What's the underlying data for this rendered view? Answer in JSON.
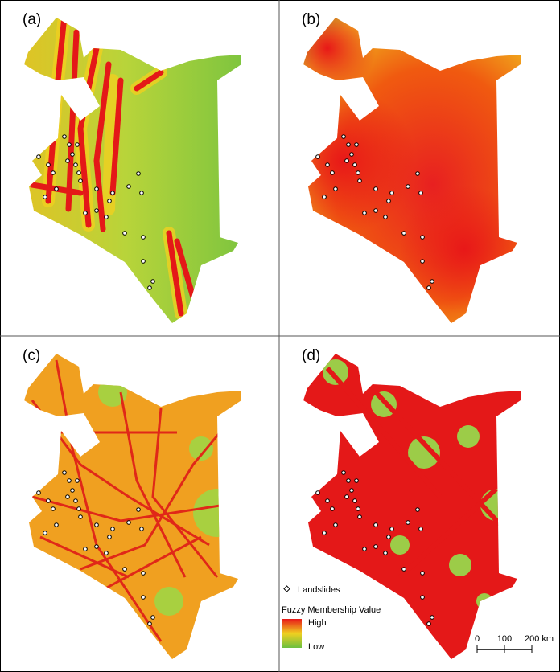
{
  "panels": [
    {
      "label": "(a)"
    },
    {
      "label": "(b)"
    },
    {
      "label": "(c)"
    },
    {
      "label": "(d)"
    }
  ],
  "legend": {
    "landslides": "Landslides",
    "title": "Fuzzy Membership Value",
    "high": "High",
    "low": "Low"
  },
  "scale_bar": {
    "labels": [
      "0",
      "100",
      "200 km"
    ]
  }
}
